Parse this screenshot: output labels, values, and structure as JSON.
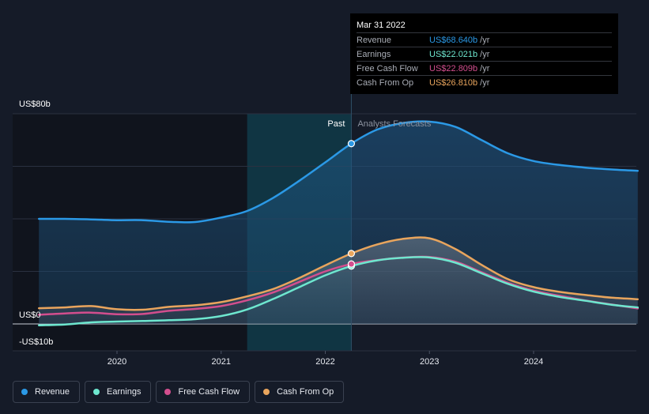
{
  "chart_data": {
    "type": "area",
    "categories_unit": "year",
    "x_ticks": [
      "2020",
      "2021",
      "2022",
      "2023",
      "2024"
    ],
    "y_ticks": [
      "US$80b",
      "US$0",
      "-US$10b"
    ],
    "ylim": [
      -10,
      80
    ],
    "xlim": [
      2019.25,
      2025.0
    ],
    "regions": {
      "past_label": "Past",
      "forecast_label": "Analysts Forecasts",
      "split_x": 2022.25,
      "highlight_start_x": 2021.25
    },
    "grid": true,
    "legend_position": "bottom-left",
    "series": [
      {
        "name": "Revenue",
        "color": "#2b99e6",
        "points": [
          [
            2019.25,
            40
          ],
          [
            2019.5,
            40
          ],
          [
            2019.75,
            39.8
          ],
          [
            2020.0,
            39.5
          ],
          [
            2020.25,
            39.5
          ],
          [
            2020.5,
            38.9
          ],
          [
            2020.75,
            38.8
          ],
          [
            2021.0,
            40.5
          ],
          [
            2021.25,
            43
          ],
          [
            2021.5,
            48
          ],
          [
            2021.75,
            54.5
          ],
          [
            2022.0,
            61.5
          ],
          [
            2022.25,
            68.64
          ],
          [
            2022.5,
            74
          ],
          [
            2022.75,
            76.5
          ],
          [
            2023.0,
            77
          ],
          [
            2023.25,
            75
          ],
          [
            2023.5,
            70
          ],
          [
            2023.75,
            65
          ],
          [
            2024.0,
            62
          ],
          [
            2024.25,
            60.5
          ],
          [
            2024.5,
            59.5
          ],
          [
            2024.75,
            58.8
          ],
          [
            2025.0,
            58.3
          ]
        ]
      },
      {
        "name": "Earnings",
        "color": "#6ee7cf",
        "points": [
          [
            2019.25,
            -0.5
          ],
          [
            2019.5,
            -0.2
          ],
          [
            2019.75,
            0.6
          ],
          [
            2020.0,
            0.9
          ],
          [
            2020.25,
            1.1
          ],
          [
            2020.5,
            1.4
          ],
          [
            2020.75,
            1.8
          ],
          [
            2021.0,
            3
          ],
          [
            2021.25,
            5.5
          ],
          [
            2021.5,
            9.5
          ],
          [
            2021.75,
            14
          ],
          [
            2022.0,
            18.5
          ],
          [
            2022.25,
            22.021
          ],
          [
            2022.5,
            24.2
          ],
          [
            2022.75,
            25.2
          ],
          [
            2023.0,
            25.3
          ],
          [
            2023.25,
            23.3
          ],
          [
            2023.5,
            19.3
          ],
          [
            2023.75,
            15.3
          ],
          [
            2024.0,
            12.3
          ],
          [
            2024.25,
            10.3
          ],
          [
            2024.5,
            8.8
          ],
          [
            2024.75,
            7.3
          ],
          [
            2025.0,
            6.3
          ]
        ]
      },
      {
        "name": "Free Cash Flow",
        "color": "#d34e8e",
        "points": [
          [
            2019.25,
            3.5
          ],
          [
            2019.5,
            4
          ],
          [
            2019.75,
            4.3
          ],
          [
            2020.0,
            3.7
          ],
          [
            2020.25,
            3.8
          ],
          [
            2020.5,
            5
          ],
          [
            2020.75,
            5.7
          ],
          [
            2021.0,
            6.8
          ],
          [
            2021.25,
            9
          ],
          [
            2021.5,
            12
          ],
          [
            2021.75,
            16
          ],
          [
            2022.0,
            20
          ],
          [
            2022.25,
            22.809
          ],
          [
            2022.5,
            24.3
          ],
          [
            2022.75,
            25.3
          ],
          [
            2023.0,
            25.5
          ],
          [
            2023.25,
            23.7
          ],
          [
            2023.5,
            19.7
          ],
          [
            2023.75,
            15.7
          ],
          [
            2024.0,
            12.7
          ],
          [
            2024.25,
            10.7
          ],
          [
            2024.5,
            8.9
          ],
          [
            2024.75,
            7.4
          ],
          [
            2025.0,
            5.9
          ]
        ]
      },
      {
        "name": "Cash From Op",
        "color": "#e9a55d",
        "points": [
          [
            2019.25,
            6
          ],
          [
            2019.5,
            6.3
          ],
          [
            2019.75,
            6.8
          ],
          [
            2020.0,
            5.6
          ],
          [
            2020.25,
            5.4
          ],
          [
            2020.5,
            6.5
          ],
          [
            2020.75,
            7.1
          ],
          [
            2021.0,
            8.3
          ],
          [
            2021.25,
            10.5
          ],
          [
            2021.5,
            13.3
          ],
          [
            2021.75,
            17.5
          ],
          [
            2022.0,
            22.3
          ],
          [
            2022.25,
            26.81
          ],
          [
            2022.5,
            30.3
          ],
          [
            2022.75,
            32.4
          ],
          [
            2023.0,
            32.6
          ],
          [
            2023.25,
            28.5
          ],
          [
            2023.5,
            22.5
          ],
          [
            2023.75,
            17.1
          ],
          [
            2024.0,
            14
          ],
          [
            2024.25,
            12.2
          ],
          [
            2024.5,
            11
          ],
          [
            2024.75,
            10
          ],
          [
            2025.0,
            9.4
          ]
        ]
      }
    ]
  },
  "tooltip": {
    "date": "Mar 31 2022",
    "rows": [
      {
        "label": "Revenue",
        "value": "US$68.640b",
        "unit": "/yr",
        "color": "#2b99e6"
      },
      {
        "label": "Earnings",
        "value": "US$22.021b",
        "unit": "/yr",
        "color": "#6ee7cf"
      },
      {
        "label": "Free Cash Flow",
        "value": "US$22.809b",
        "unit": "/yr",
        "color": "#d34e8e"
      },
      {
        "label": "Cash From Op",
        "value": "US$26.810b",
        "unit": "/yr",
        "color": "#e9a55d"
      }
    ]
  },
  "legend": [
    {
      "label": "Revenue",
      "color": "#2b99e6"
    },
    {
      "label": "Earnings",
      "color": "#6ee7cf"
    },
    {
      "label": "Free Cash Flow",
      "color": "#d34e8e"
    },
    {
      "label": "Cash From Op",
      "color": "#e9a55d"
    }
  ]
}
